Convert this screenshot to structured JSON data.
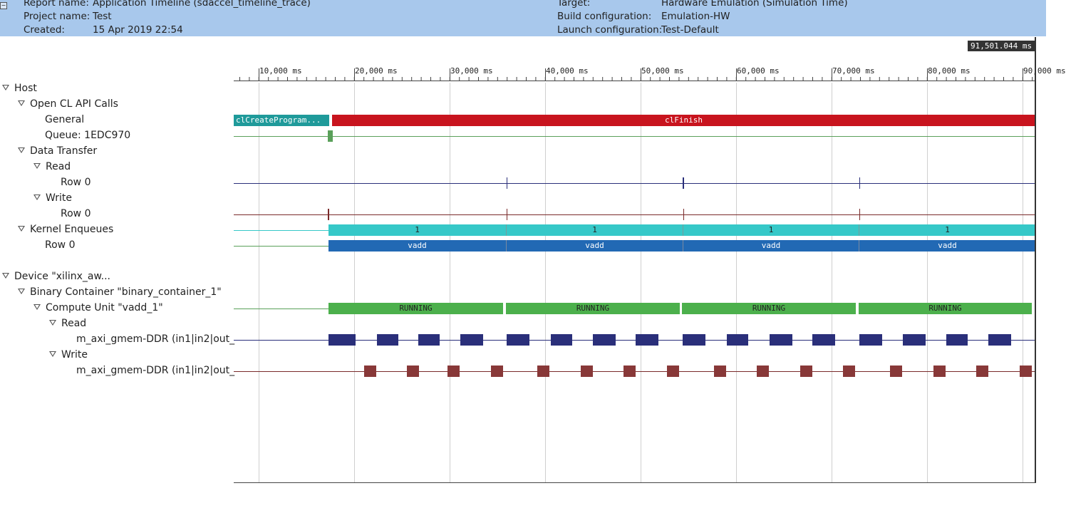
{
  "header": {
    "report_name_label": "Report name:",
    "report_name_value": "Application Timeline (sdaccel_timeline_trace)",
    "project_name_label": "Project name:",
    "project_name_value": "Test",
    "created_label": "Created:",
    "created_value": "15 Apr 2019 22:54",
    "target_label": "Target:",
    "target_value": "Hardware Emulation (Simulation Time)",
    "build_label": "Build configuration:",
    "build_value": "Emulation-HW",
    "launch_label": "Launch configuration:",
    "launch_value": "Test-Default"
  },
  "cursor_time": "91,501.044 ms",
  "ruler": {
    "ticks": [
      "10,000 ms",
      "20,000 ms",
      "30,000 ms",
      "40,000 ms",
      "50,000 ms",
      "60,000 ms",
      "70,000 ms",
      "80,000 ms",
      "90,000 ms"
    ]
  },
  "tree": {
    "host": "Host",
    "opencl_api_calls": "Open CL API Calls",
    "general": "General",
    "queue": "Queue: 1EDC970",
    "data_transfer": "Data Transfer",
    "read": "Read",
    "read_row": "Row 0",
    "write": "Write",
    "write_row": "Row 0",
    "kernel_enqueues": "Kernel Enqueues",
    "kernel_row": "Row 0",
    "device": "Device \"xilinx_aw...",
    "binary_container": "Binary Container \"binary_container_1\"",
    "compute_unit": "Compute Unit \"vadd_1\"",
    "cu_read": "Read",
    "cu_read_port": "m_axi_gmem-DDR (in1|in2|out_",
    "cu_write": "Write",
    "cu_write_port": "m_axi_gmem-DDR (in1|in2|out_"
  },
  "timeline": {
    "general_bars": [
      "clCreateProgram...",
      "clFinish"
    ],
    "kernel_enqueue_labels": [
      "1",
      "1",
      "1",
      "1"
    ],
    "kernel_row_labels": [
      "vadd",
      "vadd",
      "vadd",
      "vadd"
    ],
    "compute_unit_labels": [
      "RUNNING",
      "RUNNING",
      "RUNNING",
      "RUNNING"
    ]
  },
  "colors": {
    "header_bg": "#a8c8ec",
    "api_teal": "#1f9a9a",
    "api_red": "#c8141e",
    "queue_green": "#5aa05a",
    "read_navy": "#2a2f7a",
    "write_maroon": "#7a2a2a",
    "enqueue_cyan": "#36c8c8",
    "kernel_blue": "#2269b4",
    "running_green": "#4cb04c",
    "burst_read": "#2a2f7a",
    "burst_write": "#883838"
  }
}
